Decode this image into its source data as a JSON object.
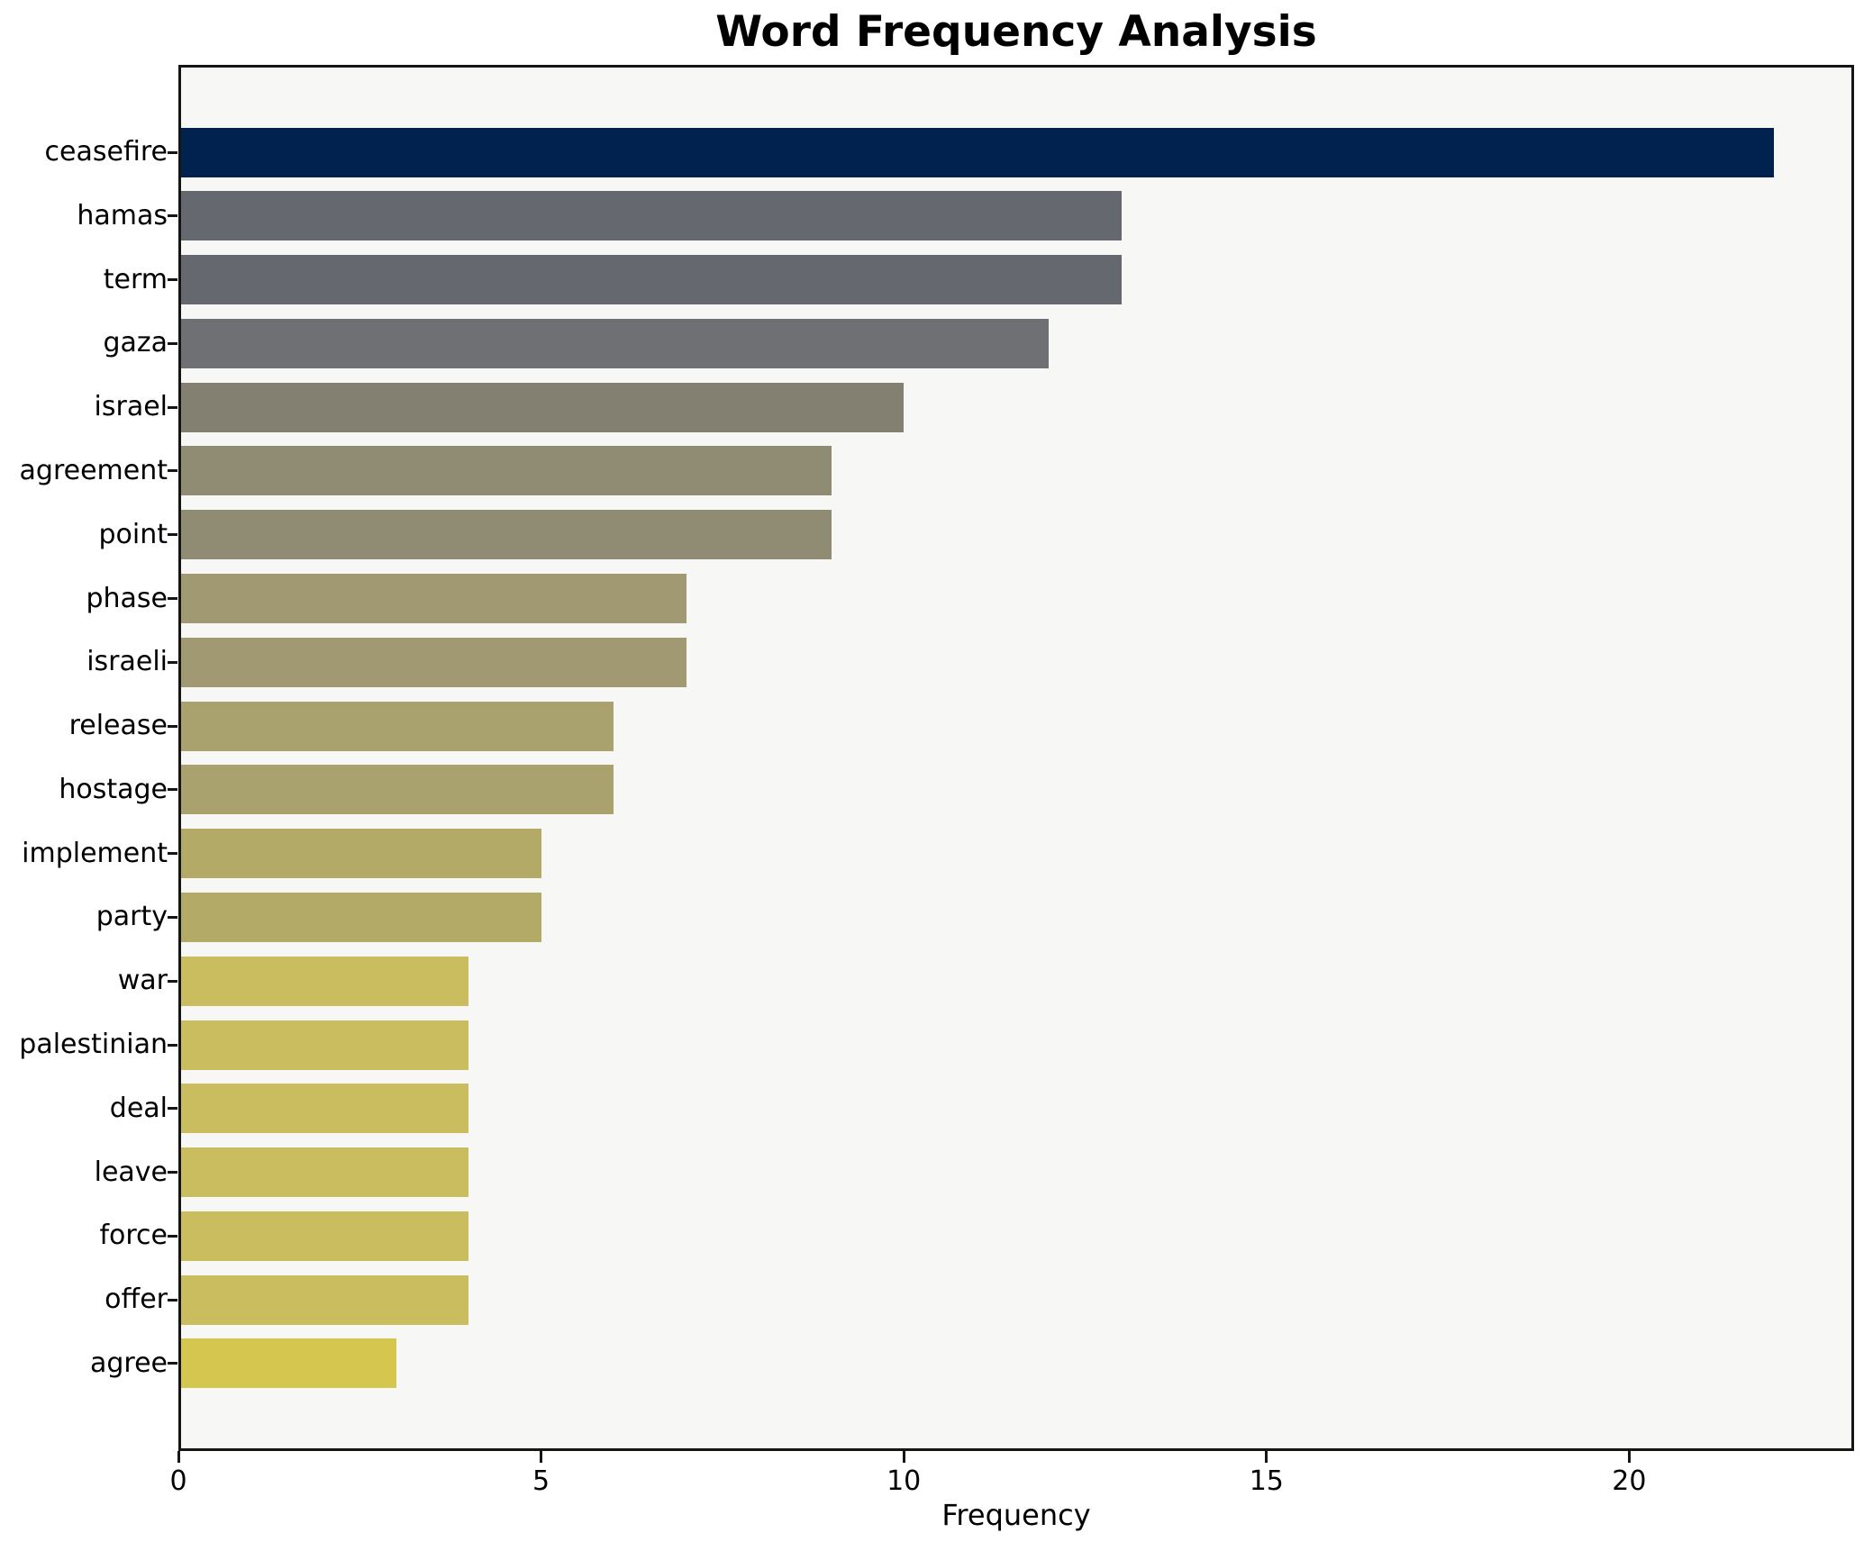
{
  "figure": {
    "title": "Word Frequency Analysis",
    "xlabel": "Frequency"
  },
  "chart_data": {
    "type": "bar",
    "orientation": "horizontal",
    "title": "Word Frequency Analysis",
    "xlabel": "Frequency",
    "ylabel": "",
    "categories": [
      "ceasefire",
      "hamas",
      "term",
      "gaza",
      "israel",
      "agreement",
      "point",
      "phase",
      "israeli",
      "release",
      "hostage",
      "implement",
      "party",
      "war",
      "palestinian",
      "deal",
      "leave",
      "force",
      "offer",
      "agree"
    ],
    "values": [
      22,
      13,
      13,
      12,
      10,
      9,
      9,
      7,
      7,
      6,
      6,
      5,
      5,
      4,
      4,
      4,
      4,
      4,
      4,
      3
    ],
    "bar_colors": [
      "#01224e",
      "#65686f",
      "#65686f",
      "#6f7073",
      "#838072",
      "#908c74",
      "#908c74",
      "#a19971",
      "#a19971",
      "#a9a16e",
      "#a9a16e",
      "#b3aa68",
      "#b3aa68",
      "#cabd60",
      "#cabd60",
      "#cabd60",
      "#cabd60",
      "#cabd60",
      "#cabd60",
      "#d5c64f"
    ],
    "x_ticks": [
      0,
      5,
      10,
      15,
      20
    ],
    "xlim": [
      0,
      23.1
    ],
    "grid": false,
    "legend": false,
    "colormap": "cividis",
    "plot_bg": "#f7f7f6",
    "figure_bg": "#ffffff",
    "spine_color": "#151515",
    "text_color": "#000000"
  }
}
